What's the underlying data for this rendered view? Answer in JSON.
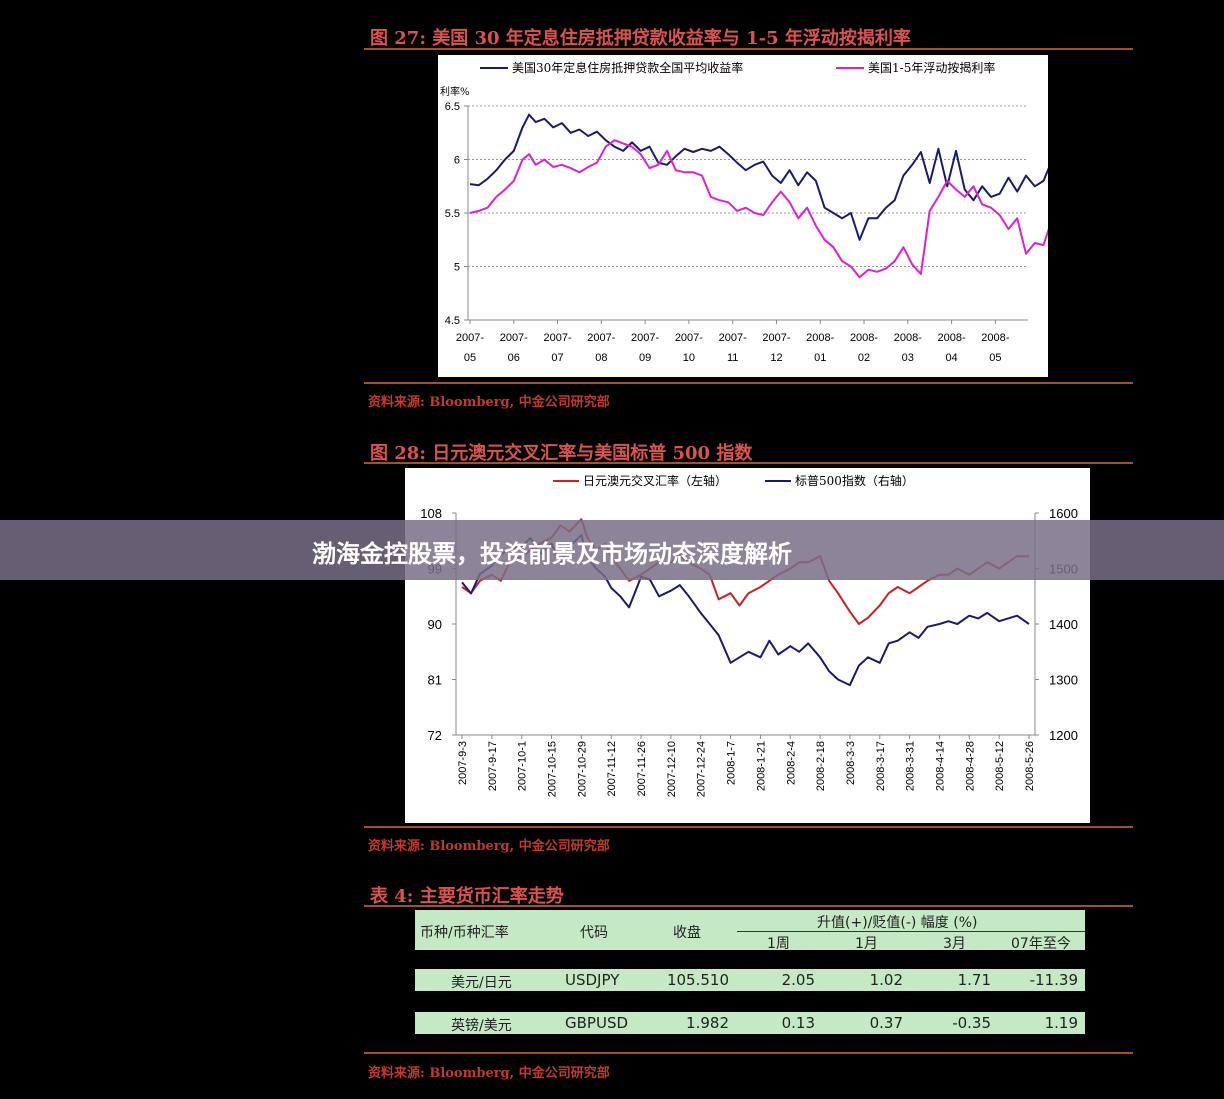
{
  "fig27": {
    "title": "图 27:  美国 30 年定息住房抵押贷款收益率与 1-5 年浮动按揭利率",
    "source": "资料来源:  Bloomberg,  中金公司研究部",
    "chart_data": {
      "type": "line",
      "ylabel": "利率%",
      "ylim": [
        4.5,
        6.5
      ],
      "yticks": [
        "6.5",
        "6",
        "5.5",
        "5",
        "4.5"
      ],
      "xticks": [
        [
          "2007-",
          "05"
        ],
        [
          "2007-",
          "06"
        ],
        [
          "2007-",
          "07"
        ],
        [
          "2007-",
          "08"
        ],
        [
          "2007-",
          "09"
        ],
        [
          "2007-",
          "10"
        ],
        [
          "2007-",
          "11"
        ],
        [
          "2007-",
          "12"
        ],
        [
          "2008-",
          "01"
        ],
        [
          "2008-",
          "02"
        ],
        [
          "2008-",
          "03"
        ],
        [
          "2008-",
          "04"
        ],
        [
          "2008-",
          "05"
        ]
      ],
      "series": [
        {
          "name": "美国30年定息住房抵押贷款全国平均收益率",
          "color": "#1a1a6e",
          "x": [
            0,
            0.2,
            0.4,
            0.6,
            0.8,
            1.0,
            1.2,
            1.35,
            1.5,
            1.7,
            1.9,
            2.1,
            2.3,
            2.5,
            2.7,
            2.9,
            3.1,
            3.3,
            3.5,
            3.7,
            3.9,
            4.1,
            4.3,
            4.5,
            4.7,
            4.9,
            5.1,
            5.3,
            5.5,
            5.7,
            5.9,
            6.1,
            6.3,
            6.5,
            6.7,
            6.9,
            7.1,
            7.3,
            7.5,
            7.7,
            7.9,
            8.1,
            8.3,
            8.5,
            8.7,
            8.9,
            9.1,
            9.3,
            9.5,
            9.7,
            9.9,
            10.1,
            10.3,
            10.5,
            10.7,
            10.9,
            11.1,
            11.3,
            11.5,
            11.7,
            11.9,
            12.1,
            12.3,
            12.5,
            12.7,
            12.9,
            13.1,
            13.3
          ],
          "y": [
            5.77,
            5.76,
            5.82,
            5.9,
            6.0,
            6.08,
            6.3,
            6.42,
            6.35,
            6.38,
            6.3,
            6.34,
            6.25,
            6.28,
            6.22,
            6.26,
            6.18,
            6.12,
            6.08,
            6.16,
            6.08,
            6.12,
            5.97,
            5.95,
            6.03,
            6.1,
            6.07,
            6.1,
            6.08,
            6.12,
            6.05,
            5.97,
            5.9,
            5.95,
            5.98,
            5.85,
            5.78,
            5.9,
            5.76,
            5.88,
            5.8,
            5.55,
            5.5,
            5.45,
            5.5,
            5.25,
            5.45,
            5.45,
            5.55,
            5.62,
            5.85,
            5.95,
            6.07,
            5.78,
            6.1,
            5.75,
            6.08,
            5.72,
            5.62,
            5.75,
            5.65,
            5.68,
            5.83,
            5.7,
            5.85,
            5.75,
            5.8,
            6.0
          ]
        },
        {
          "name": "美国1-5年浮动按揭利率",
          "color": "#e020d0",
          "x": [
            0,
            0.2,
            0.4,
            0.6,
            0.8,
            1.0,
            1.2,
            1.35,
            1.5,
            1.7,
            1.9,
            2.1,
            2.3,
            2.5,
            2.7,
            2.9,
            3.1,
            3.3,
            3.5,
            3.7,
            3.9,
            4.1,
            4.3,
            4.5,
            4.7,
            4.9,
            5.1,
            5.3,
            5.5,
            5.7,
            5.9,
            6.1,
            6.3,
            6.5,
            6.7,
            6.9,
            7.1,
            7.3,
            7.5,
            7.7,
            7.9,
            8.1,
            8.3,
            8.5,
            8.7,
            8.9,
            9.1,
            9.3,
            9.5,
            9.7,
            9.9,
            10.1,
            10.3,
            10.5,
            10.7,
            10.9,
            11.1,
            11.3,
            11.5,
            11.7,
            11.9,
            12.1,
            12.3,
            12.5,
            12.7,
            12.9,
            13.1,
            13.3
          ],
          "y": [
            5.5,
            5.52,
            5.55,
            5.65,
            5.72,
            5.8,
            6.0,
            6.05,
            5.95,
            6.0,
            5.93,
            5.95,
            5.92,
            5.88,
            5.93,
            5.97,
            6.12,
            6.18,
            6.15,
            6.12,
            6.05,
            5.92,
            5.95,
            6.08,
            5.9,
            5.88,
            5.88,
            5.85,
            5.65,
            5.62,
            5.6,
            5.52,
            5.55,
            5.5,
            5.48,
            5.6,
            5.7,
            5.6,
            5.45,
            5.55,
            5.38,
            5.25,
            5.18,
            5.05,
            5.0,
            4.9,
            4.97,
            4.95,
            4.98,
            5.05,
            5.18,
            5.02,
            4.93,
            5.52,
            5.65,
            5.8,
            5.72,
            5.65,
            5.75,
            5.58,
            5.55,
            5.48,
            5.35,
            5.45,
            5.12,
            5.22,
            5.2,
            5.45
          ]
        }
      ],
      "legend_position": "top"
    }
  },
  "fig28": {
    "title": "图 28:  日元澳元交叉汇率与美国标普 500 指数",
    "source": "资料来源:  Bloomberg,  中金公司研究部",
    "chart_data": {
      "type": "line",
      "ylim_left": [
        72,
        108
      ],
      "ylim_right": [
        1200,
        1600
      ],
      "yticks_left": [
        "108",
        "99",
        "90",
        "81",
        "72"
      ],
      "yticks_right": [
        "1600",
        "1500",
        "1400",
        "1300",
        "1200"
      ],
      "xticks": [
        "2007-9-3",
        "2007-9-17",
        "2007-10-1",
        "2007-10-15",
        "2007-10-29",
        "2007-11-12",
        "2007-11-26",
        "2007-12-10",
        "2007-12-24",
        "2008-1-7",
        "2008-1-21",
        "2008-2-4",
        "2008-2-18",
        "2008-3-3",
        "2008-3-17",
        "2008-3-31",
        "2008-4-14",
        "2008-4-28",
        "2008-5-12",
        "2008-5-26"
      ],
      "series": [
        {
          "name": "日元澳元交叉汇率（左轴）",
          "axis": "left",
          "color": "#cc2222",
          "x": [
            0,
            0.3,
            0.6,
            1.0,
            1.3,
            1.6,
            2.0,
            2.3,
            2.6,
            3.0,
            3.3,
            3.6,
            4.0,
            4.2,
            4.5,
            4.8,
            5.0,
            5.3,
            5.6,
            6.0,
            6.3,
            6.6,
            7.0,
            7.3,
            7.6,
            8.0,
            8.3,
            8.6,
            9.0,
            9.3,
            9.6,
            10.0,
            10.3,
            10.6,
            11.0,
            11.3,
            11.6,
            12.0,
            12.3,
            12.6,
            13.0,
            13.3,
            13.6,
            14.0,
            14.3,
            14.6,
            15.0,
            15.3,
            15.6,
            16.0,
            16.3,
            16.6,
            17.0,
            17.3,
            17.6,
            18.0,
            18.3,
            18.6,
            19.0
          ],
          "y": [
            96,
            95,
            97,
            98,
            97,
            100,
            101,
            102,
            103,
            104,
            106,
            105,
            107,
            104,
            102,
            103,
            101,
            99,
            97,
            98,
            99,
            100,
            100,
            101,
            100,
            99,
            98,
            94,
            95,
            93,
            95,
            96,
            97,
            98,
            99,
            100,
            100,
            101,
            97,
            95,
            92,
            90,
            91,
            93,
            95,
            96,
            95,
            96,
            97,
            98,
            98,
            99,
            98,
            99,
            100,
            99,
            100,
            101,
            101
          ]
        },
        {
          "name": "标普500指数（右轴）",
          "axis": "right",
          "color": "#1a1a6e",
          "x": [
            0,
            0.3,
            0.6,
            1.0,
            1.3,
            1.6,
            2.0,
            2.3,
            2.6,
            3.0,
            3.3,
            3.6,
            4.0,
            4.2,
            4.5,
            4.8,
            5.0,
            5.3,
            5.6,
            6.0,
            6.3,
            6.6,
            7.0,
            7.3,
            7.6,
            8.0,
            8.3,
            8.6,
            9.0,
            9.3,
            9.6,
            10.0,
            10.3,
            10.6,
            11.0,
            11.3,
            11.6,
            12.0,
            12.3,
            12.6,
            13.0,
            13.3,
            13.6,
            14.0,
            14.3,
            14.6,
            15.0,
            15.3,
            15.6,
            16.0,
            16.3,
            16.6,
            17.0,
            17.3,
            17.6,
            18.0,
            18.3,
            18.6,
            19.0
          ],
          "y": [
            1475,
            1455,
            1490,
            1505,
            1525,
            1535,
            1540,
            1555,
            1525,
            1545,
            1510,
            1540,
            1560,
            1520,
            1500,
            1485,
            1465,
            1450,
            1430,
            1485,
            1480,
            1450,
            1460,
            1470,
            1450,
            1420,
            1400,
            1380,
            1330,
            1340,
            1350,
            1340,
            1370,
            1345,
            1360,
            1350,
            1365,
            1340,
            1315,
            1300,
            1290,
            1325,
            1340,
            1330,
            1365,
            1370,
            1385,
            1375,
            1395,
            1400,
            1405,
            1400,
            1415,
            1410,
            1420,
            1405,
            1410,
            1415,
            1400
          ]
        }
      ],
      "legend_position": "top"
    }
  },
  "table4": {
    "title": "表 4:  主要货币汇率走势",
    "source": "资料来源:  Bloomberg,  中金公司研究部",
    "headers": {
      "pair": "币种/币种汇率",
      "code": "代码",
      "close": "收盘",
      "change_group": "升值(+)/贬值(-)  幅度 (%)",
      "w1": "1周",
      "m1": "1月",
      "m3": "3月",
      "ytd": "07年至今"
    },
    "rows": [
      {
        "pair": "美元/日元",
        "code": "USDJPY",
        "close": "105.510",
        "w1": "2.05",
        "m1": "1.02",
        "m3": "1.71",
        "ytd": "-11.39"
      },
      {
        "pair": "英镑/美元",
        "code": "GBPUSD",
        "close": "1.982",
        "w1": "0.13",
        "m1": "0.37",
        "m3": "-0.35",
        "ytd": "1.19"
      }
    ]
  },
  "banner": {
    "text": "渤海金控股票，投资前景及市场动态深度解析"
  }
}
